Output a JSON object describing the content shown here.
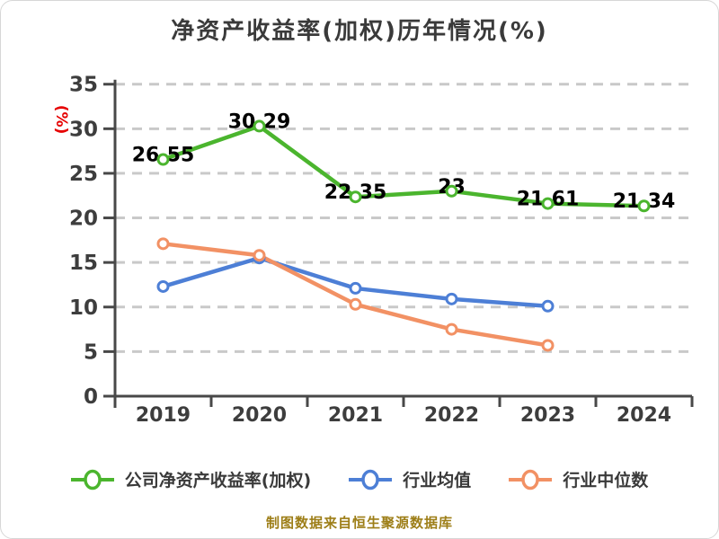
{
  "title": "净资产收益率(加权)历年情况(%)",
  "y_axis_unit": "(%)",
  "source_note": "制图数据来自恒生聚源数据库",
  "colors": {
    "title": "#3a3a3a",
    "unit_label": "#e60000",
    "source_note": "#9d7e17",
    "axis": "#484848",
    "grid": "#c9c9c9",
    "tick_label": "#3d3d3d",
    "point_label": "#000000",
    "legend_label": "#3a3a3a"
  },
  "chart_data": {
    "type": "line",
    "title": "净资产收益率(加权)历年情况(%)",
    "categories": [
      "2019",
      "2020",
      "2021",
      "2022",
      "2023",
      "2024"
    ],
    "series": [
      {
        "name": "公司净资产收益率(加权)",
        "color": "#4bb52e",
        "values": [
          26.55,
          30.29,
          22.35,
          23,
          21.61,
          21.34
        ],
        "point_labels": [
          "26.55",
          "30.29",
          "22.35",
          "23",
          "21.61",
          "21.34"
        ]
      },
      {
        "name": "行业均值",
        "color": "#4d7fd6",
        "values": [
          12.3,
          15.5,
          12.1,
          10.9,
          10.1,
          null
        ]
      },
      {
        "name": "行业中位数",
        "color": "#f29164",
        "values": [
          17.1,
          15.8,
          10.3,
          7.5,
          5.7,
          null
        ]
      }
    ],
    "ylabel": "(%)",
    "ylim": [
      0,
      35
    ],
    "y_ticks": [
      0,
      5,
      10,
      15,
      20,
      25,
      30,
      35
    ],
    "grid": "horizontal-dashed",
    "legend_position": "bottom",
    "marker": "open-circle"
  }
}
